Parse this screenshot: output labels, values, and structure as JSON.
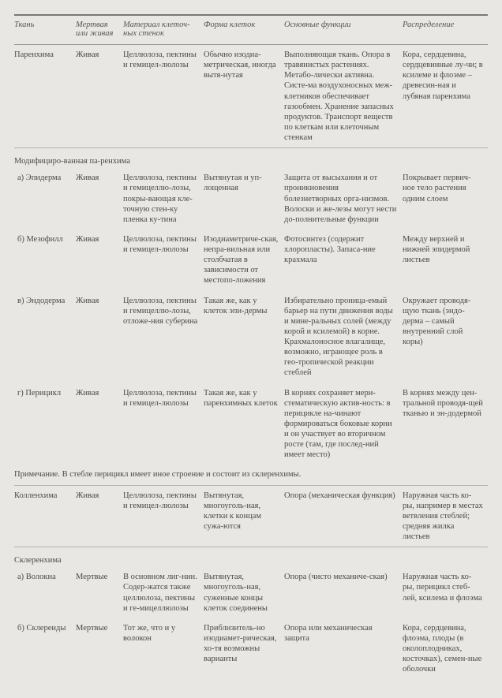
{
  "headers": {
    "c1": "Ткань",
    "c2": "Мертвая\nили живая",
    "c3": "Материал клеточ-\nных стенок",
    "c4": "Форма клеток",
    "c5": "Основные функции",
    "c6": "Распределение"
  },
  "rows": {
    "parenchyma": {
      "c1": "Паренхима",
      "c2": "Живая",
      "c3": "Целлюлоза, пектины и гемицел-люлозы",
      "c4": "Обычно изодиа-метрическая, иногда вытя-нутая",
      "c5": "Выполняющая ткань. Опора в травянистых растениях. Метабо-лически активна. Систе-ма воздухоносных меж-клетников обеспечивает газообмен. Хранение запасных продуктов. Транспорт веществ по клеткам или клеточным стенкам",
      "c6": "Кора, сердцевина, сердцевинные лу-чи; в ксилеме и флоэме – древесин-ная и лубяная паренхима"
    },
    "modified_header": {
      "c1": "Модифициро-ванная па-ренхима"
    },
    "epiderma": {
      "c1": "а) Эпидерма",
      "c2": "Живая",
      "c3": "Целлюлоза, пектины и гемицеллю-лозы, покры-вающая кле-точную стен-ку пленка ку-тина",
      "c4": "Вытянутая и уп-лощенная",
      "c5": "Защита от высыхания и от проникновения болезнетворных орга-низмов. Волоски и же-лезы могут нести до-полнительные функции",
      "c6": "Покрывает первич-ное тело растения одним слоем"
    },
    "mezofill": {
      "c1": "б) Мезофилл",
      "c2": "Живая",
      "c3": "Целлюлоза, пектины и гемицел-люлозы",
      "c4": "Изодиаметриче-ская, непра-вильная или столбчатая в зависимости от местопо-ложения",
      "c5": "Фотосинтез (содержит хлоропласты). Запаса-ние крахмала",
      "c6": "Между верхней и нижней эпидермой листьев"
    },
    "endoderma": {
      "c1": "в) Эндодерма",
      "c2": "Живая",
      "c3": "Целлюлоза, пектины и гемицеллю-лозы, отложе-ния суберина",
      "c4": "Такая же, как у клеток эпи-дермы",
      "c5": "Избирательно проница-емый барьер на пути движения воды и мине-ральных солей (между корой и ксилемой) в корне. Крахмалоносное влагалище, возможно, играющее роль в гео-тропической реакции стеблей",
      "c6": "Окружает проводя-щую ткань (эндо-дерма – самый внутренний слой коры)"
    },
    "pericycle": {
      "c1": "г) Перицикл",
      "c2": "Живая",
      "c3": "Целлюлоза, пектины и гемицел-люлозы",
      "c4": "Такая же, как у паренхимных клеток",
      "c5": "В корнях сохраняет мери-стематическую актив-ность: в перицикле на-чинают формироваться боковые корни и он участвует во вторичном росте (там, где послед-ний имеет место)",
      "c6": "В корнях между цен-тральной проводя-щей тканью и эн-додермой"
    },
    "note": "Примечание. В стебле перицикл имеет иное строение и состоит из склеренхимы.",
    "kollenchima": {
      "c1": "Колленхима",
      "c2": "Живая",
      "c3": "Целлюлоза, пектины и гемицел-люлозы",
      "c4": "Вытянутая, многоуголь-ная, клетки к концам сужа-ются",
      "c5": "Опора (механическая функция)",
      "c6": "Наружная часть ко-ры, например в местах ветвления стеблей; средняя жилка листьев"
    },
    "scler_header": {
      "c1": "Склеренхима"
    },
    "volokna": {
      "c1": "а) Волокна",
      "c2": "Мертвые",
      "c3": "В основном лиг-нин. Содер-жатся также целлюлоза, пектины и ге-мицеллюлозы",
      "c4": "Вытянутая, многоуголь-ная, суженные концы клеток соединены",
      "c5": "Опора (чисто механиче-ская)",
      "c6": "Наружная часть ко-ры, перицикл стеб-лей, ксилема и флоэма"
    },
    "sklereidy": {
      "c1": "б) Склереиды",
      "c2": "Мертвые",
      "c3": "Тот же, что и у волокон",
      "c4": "Приблизитель-но изодиамет-рическая, хо-тя возможны варианты",
      "c5": "Опора или механическая защита",
      "c6": "Кора, сердцевина, флоэма, плоды (в околоплодниках, косточках), семен-ные оболочки"
    }
  }
}
